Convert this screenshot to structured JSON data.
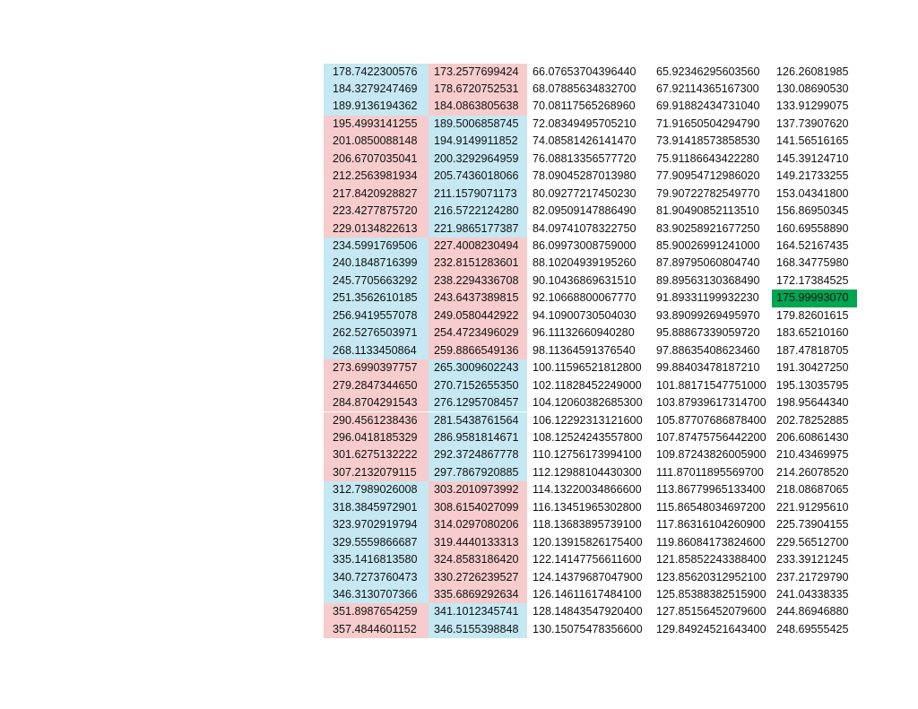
{
  "table": {
    "rows": [
      [
        "178.7422300576",
        "173.2577699424",
        "66.07653704396440",
        "65.92346295603560",
        "126.26081985"
      ],
      [
        "184.3279247469",
        "178.6720752531",
        "68.07885634832700",
        "67.92114365167300",
        "130.08690530"
      ],
      [
        "189.9136194362",
        "184.0863805638",
        "70.08117565268960",
        "69.91882434731040",
        "133.91299075"
      ],
      [
        "195.4993141255",
        "189.5006858745",
        "72.08349495705210",
        "71.91650504294790",
        "137.73907620"
      ],
      [
        "201.0850088148",
        "194.9149911852",
        "74.08581426141470",
        "73.91418573858530",
        "141.56516165"
      ],
      [
        "206.6707035041",
        "200.3292964959",
        "76.08813356577720",
        "75.91186643422280",
        "145.39124710"
      ],
      [
        "212.2563981934",
        "205.7436018066",
        "78.09045287013980",
        "77.90954712986020",
        "149.21733255"
      ],
      [
        "217.8420928827",
        "211.1579071173",
        "80.09277217450230",
        "79.90722782549770",
        "153.04341800"
      ],
      [
        "223.4277875720",
        "216.5722124280",
        "82.09509147886490",
        "81.90490852113510",
        "156.86950345"
      ],
      [
        "229.0134822613",
        "221.9865177387",
        "84.09741078322750",
        "83.90258921677250",
        "160.69558890"
      ],
      [
        "234.5991769506",
        "227.4008230494",
        "86.09973008759000",
        "85.90026991241000",
        "164.52167435"
      ],
      [
        "240.1848716399",
        "232.8151283601",
        "88.10204939195260",
        "87.89795060804740",
        "168.34775980"
      ],
      [
        "245.7705663292",
        "238.2294336708",
        "90.10436869631510",
        "89.89563130368490",
        "172.17384525"
      ],
      [
        "251.3562610185",
        "243.6437389815",
        "92.10668800067770",
        "91.89331199932230",
        "175.99993070"
      ],
      [
        "256.9419557078",
        "249.0580442922",
        "94.10900730504030",
        "93.89099269495970",
        "179.82601615"
      ],
      [
        "262.5276503971",
        "254.4723496029",
        "96.11132660940280",
        "95.88867339059720",
        "183.65210160"
      ],
      [
        "268.1133450864",
        "259.8866549136",
        "98.11364591376540",
        "97.88635408623460",
        "187.47818705"
      ],
      [
        "273.6990397757",
        "265.3009602243",
        "100.11596521812800",
        "99.88403478187210",
        "191.30427250"
      ],
      [
        "279.2847344650",
        "270.7152655350",
        "102.11828452249000",
        "101.88171547751000",
        "195.13035795"
      ],
      [
        "284.8704291543",
        "276.1295708457",
        "104.12060382685300",
        "103.87939617314700",
        "198.95644340"
      ],
      [
        "290.4561238436",
        "281.5438761564",
        "106.12292313121600",
        "105.87707686878400",
        "202.78252885"
      ],
      [
        "296.0418185329",
        "286.9581814671",
        "108.12524243557800",
        "107.87475756442200",
        "206.60861430"
      ],
      [
        "301.6275132222",
        "292.3724867778",
        "110.12756173994100",
        "109.87243826005900",
        "210.43469975"
      ],
      [
        "307.2132079115",
        "297.7867920885",
        "112.12988104430300",
        "111.87011895569700",
        "214.26078520"
      ],
      [
        "312.7989026008",
        "303.2010973992",
        "114.13220034866600",
        "113.86779965133400",
        "218.08687065"
      ],
      [
        "318.3845972901",
        "308.6154027099",
        "116.13451965302800",
        "115.86548034697200",
        "221.91295610"
      ],
      [
        "323.9702919794",
        "314.0297080206",
        "118.13683895739100",
        "117.86316104260900",
        "225.73904155"
      ],
      [
        "329.5559866687",
        "319.4440133313",
        "120.13915826175400",
        "119.86084173824600",
        "229.56512700"
      ],
      [
        "335.1416813580",
        "324.8583186420",
        "122.14147756611600",
        "121.85852243388400",
        "233.39121245"
      ],
      [
        "340.7273760473",
        "330.2726239527",
        "124.14379687047900",
        "123.85620312952100",
        "237.21729790"
      ],
      [
        "346.3130707366",
        "335.6869292634",
        "126.14611617484100",
        "125.85388382515900",
        "241.04338335"
      ],
      [
        "351.8987654259",
        "341.1012345741",
        "128.14843547920400",
        "127.85156452079600",
        "244.86946880"
      ],
      [
        "357.4844601152",
        "346.5155398848",
        "130.15075478356600",
        "129.84924521643400",
        "248.69555425"
      ]
    ]
  }
}
